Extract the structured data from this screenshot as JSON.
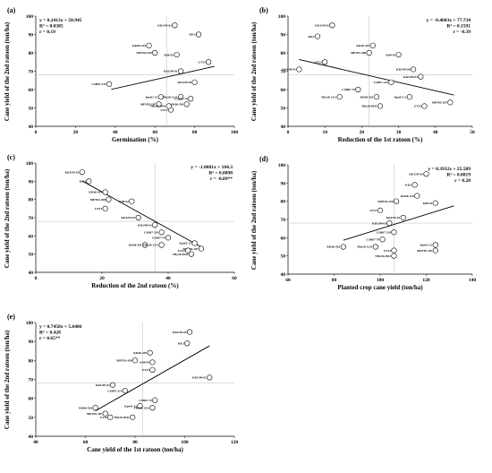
{
  "chart_data": [
    {
      "panel": "(a)",
      "type": "scatter",
      "equation": "y = 0.2413x + 50.945",
      "r2": "R² = 0.0385",
      "r": "r = 0.19",
      "xlabel": "Germination (%)",
      "ylabel": "Cane yield of the 2nd ratoon (ton/ha)",
      "xlim": [
        0,
        100
      ],
      "ylim": [
        40,
        100
      ],
      "xticks": [
        0,
        20,
        40,
        60,
        80,
        100
      ],
      "yticks": [
        40,
        50,
        60,
        70,
        80,
        90,
        100
      ],
      "trend": {
        "slope": 0.2413,
        "intercept": 50.945,
        "x": [
          38,
          90
        ]
      },
      "ref": {
        "x": 66,
        "y": 68
      },
      "points": [
        {
          "label": "KKU99-02",
          "x": 70,
          "y": 95
        },
        {
          "label": "KK3",
          "x": 82,
          "y": 90
        },
        {
          "label": "KK06-419",
          "x": 57,
          "y": 84
        },
        {
          "label": "MPT02-458",
          "x": 60,
          "y": 80
        },
        {
          "label": "K88-92",
          "x": 71,
          "y": 79
        },
        {
          "label": "UT13",
          "x": 87,
          "y": 75
        },
        {
          "label": "KKU99-01",
          "x": 73,
          "y": 70
        },
        {
          "label": "CSB07-219",
          "x": 37,
          "y": 63
        },
        {
          "label": "KKU99-03",
          "x": 80,
          "y": 64
        },
        {
          "label": "Kps01-12",
          "x": 63,
          "y": 56
        },
        {
          "label": "TBy28-1211",
          "x": 73,
          "y": 56
        },
        {
          "label": "CSB07-79",
          "x": 78,
          "y": 55
        },
        {
          "label": "MPT05-187",
          "x": 62,
          "y": 52
        },
        {
          "label": "KK06-501",
          "x": 76,
          "y": 52
        },
        {
          "label": "UT12",
          "x": 68,
          "y": 49
        },
        {
          "label": "TBy28-0941",
          "x": 67,
          "y": 51
        }
      ]
    },
    {
      "panel": "(b)",
      "type": "scatter",
      "equation": "y = -0.4603x + 77.734",
      "r2": "R² = 0.1591",
      "r": "r = -0.39",
      "xlabel": "Reduction of the 1st ratoon (%)",
      "ylabel": "Cane yield of the 2nd ratoon (ton/ha)",
      "xlim": [
        0,
        50
      ],
      "ylim": [
        40,
        100
      ],
      "xticks": [
        0,
        10,
        20,
        30,
        40,
        50
      ],
      "yticks": [
        40,
        50,
        60,
        70,
        80,
        90,
        100
      ],
      "trend": {
        "slope": -0.4603,
        "intercept": 77.734,
        "x": [
          3,
          45
        ]
      },
      "ref": {
        "x": 22,
        "y": 68
      },
      "points": [
        {
          "label": "KKU99-02",
          "x": 12,
          "y": 95
        },
        {
          "label": "KK3",
          "x": 8,
          "y": 89
        },
        {
          "label": "KK06-419",
          "x": 23,
          "y": 84
        },
        {
          "label": "MPT02-458",
          "x": 22,
          "y": 80
        },
        {
          "label": "K88-92",
          "x": 30,
          "y": 79
        },
        {
          "label": "KKU99-01",
          "x": 3,
          "y": 71
        },
        {
          "label": "UT13",
          "x": 10,
          "y": 75
        },
        {
          "label": "KKU99-06",
          "x": 34,
          "y": 71
        },
        {
          "label": "KKU99-03",
          "x": 36,
          "y": 67
        },
        {
          "label": "CSB07-219",
          "x": 28,
          "y": 64
        },
        {
          "label": "CSB07-79",
          "x": 19,
          "y": 60
        },
        {
          "label": "TBy28-1211",
          "x": 14,
          "y": 56
        },
        {
          "label": "KK06-501",
          "x": 24,
          "y": 56
        },
        {
          "label": "Kps01-12",
          "x": 33,
          "y": 56
        },
        {
          "label": "UT12",
          "x": 37,
          "y": 51
        },
        {
          "label": "TBy28-0941",
          "x": 25,
          "y": 51
        },
        {
          "label": "MPT05-187",
          "x": 44,
          "y": 53
        }
      ]
    },
    {
      "panel": "(c)",
      "type": "scatter",
      "equation": "y = -1.0081x + 104.3",
      "r2": "R² = 0.8098",
      "r": "r = -0.89**",
      "xlabel": "Reduction of the 2nd ratoon (%)",
      "ylabel": "Cane yield of the 2nd ratoon (ton/ha)",
      "xlim": [
        0,
        60
      ],
      "ylim": [
        40,
        100
      ],
      "xticks": [
        0,
        20,
        40,
        60
      ],
      "yticks": [
        40,
        50,
        60,
        70,
        80,
        90,
        100
      ],
      "trend": {
        "slope": -1.0081,
        "intercept": 104.3,
        "x": [
          14,
          50
        ]
      },
      "ref": {
        "x": 36,
        "y": 68
      },
      "points": [
        {
          "label": "KKU99-02",
          "x": 14,
          "y": 95
        },
        {
          "label": "KK3",
          "x": 16,
          "y": 90
        },
        {
          "label": "KK06-419",
          "x": 21,
          "y": 84
        },
        {
          "label": "MPT02-458",
          "x": 22,
          "y": 80
        },
        {
          "label": "K88-92",
          "x": 29,
          "y": 79
        },
        {
          "label": "UT13",
          "x": 21,
          "y": 75
        },
        {
          "label": "KKU99-01",
          "x": 31,
          "y": 70
        },
        {
          "label": "KKU99-03",
          "x": 36,
          "y": 66
        },
        {
          "label": "CSB07-219",
          "x": 38,
          "y": 62
        },
        {
          "label": "CSB07-79",
          "x": 40,
          "y": 59
        },
        {
          "label": "KK06-501",
          "x": 33,
          "y": 55
        },
        {
          "label": "TBy28-1211",
          "x": 38,
          "y": 55
        },
        {
          "label": "Kps01-12",
          "x": 48,
          "y": 56
        },
        {
          "label": "MPT05-187",
          "x": 50,
          "y": 53
        },
        {
          "label": "UT12",
          "x": 46,
          "y": 52
        },
        {
          "label": "TBy28-0941",
          "x": 47,
          "y": 50
        }
      ]
    },
    {
      "panel": "(d)",
      "type": "scatter",
      "equation": "y = 0.3932x + 25.589",
      "r2": "R² = 0.0819",
      "r": "r = 0.28",
      "xlabel": "Planted crop cane yield (ton/ha)",
      "ylabel": "Cane yield of the 2nd ratoon (ton/ha)",
      "xlim": [
        60,
        140
      ],
      "ylim": [
        40,
        100
      ],
      "xticks": [
        60,
        80,
        100,
        120,
        140
      ],
      "yticks": [
        40,
        50,
        60,
        70,
        80,
        90,
        100
      ],
      "trend": {
        "slope": 0.3932,
        "intercept": 25.589,
        "x": [
          84,
          132
        ]
      },
      "ref": {
        "x": 106,
        "y": 68
      },
      "points": [
        {
          "label": "KKU99-02",
          "x": 120,
          "y": 95
        },
        {
          "label": "KK3",
          "x": 115,
          "y": 89
        },
        {
          "label": "KK06-419",
          "x": 116,
          "y": 83
        },
        {
          "label": "MPT02-458",
          "x": 107,
          "y": 80
        },
        {
          "label": "K88-92",
          "x": 124,
          "y": 79
        },
        {
          "label": "UT13",
          "x": 100,
          "y": 75
        },
        {
          "label": "KKU99-01",
          "x": 110,
          "y": 71
        },
        {
          "label": "KKU99-03",
          "x": 104,
          "y": 68
        },
        {
          "label": "CSB07-219",
          "x": 106,
          "y": 63
        },
        {
          "label": "CSB07-79",
          "x": 101,
          "y": 59
        },
        {
          "label": "KK06-501",
          "x": 84,
          "y": 55
        },
        {
          "label": "TBy28-1211",
          "x": 98,
          "y": 55
        },
        {
          "label": "UT12",
          "x": 106,
          "y": 53
        },
        {
          "label": "TBy28-0941",
          "x": 106,
          "y": 50
        },
        {
          "label": "Kps01-12",
          "x": 124,
          "y": 56
        },
        {
          "label": "MPT05-187",
          "x": 124,
          "y": 53
        }
      ]
    },
    {
      "panel": "(e)",
      "type": "scatter",
      "equation": "y = 0.7458x + 5.6486",
      "r2": "R² = 0.428",
      "r": "r = 0.65**",
      "xlabel": "Cane yield of the 1st ratoon (ton/ha)",
      "ylabel": "Cane yield of the 2nd ratoon (ton/ha)",
      "xlim": [
        40,
        120
      ],
      "ylim": [
        40,
        100
      ],
      "xticks": [
        40,
        60,
        80,
        100,
        120
      ],
      "yticks": [
        40,
        50,
        60,
        70,
        80,
        90,
        100
      ],
      "trend": {
        "slope": 0.7458,
        "intercept": 5.6486,
        "x": [
          64,
          110
        ]
      },
      "ref": {
        "x": 83,
        "y": 68
      },
      "points": [
        {
          "label": "KKU99-02",
          "x": 102,
          "y": 95
        },
        {
          "label": "KK3",
          "x": 101,
          "y": 89
        },
        {
          "label": "KK06-419",
          "x": 86,
          "y": 84
        },
        {
          "label": "MPT02-458",
          "x": 80,
          "y": 80
        },
        {
          "label": "K88-92",
          "x": 87,
          "y": 79
        },
        {
          "label": "UT13",
          "x": 87,
          "y": 75
        },
        {
          "label": "KKU99-01",
          "x": 110,
          "y": 71
        },
        {
          "label": "KKU99-03",
          "x": 71,
          "y": 67
        },
        {
          "label": "CSB07-219",
          "x": 76,
          "y": 64
        },
        {
          "label": "KK06-501",
          "x": 64,
          "y": 55
        },
        {
          "label": "CSB07-79",
          "x": 88,
          "y": 59
        },
        {
          "label": "Kps01-12",
          "x": 82,
          "y": 56
        },
        {
          "label": "TBy28-1211",
          "x": 87,
          "y": 55
        },
        {
          "label": "MPT05-187",
          "x": 68,
          "y": 52
        },
        {
          "label": "UT12",
          "x": 70,
          "y": 50
        },
        {
          "label": "TBy28-0941",
          "x": 79,
          "y": 50
        }
      ]
    }
  ]
}
